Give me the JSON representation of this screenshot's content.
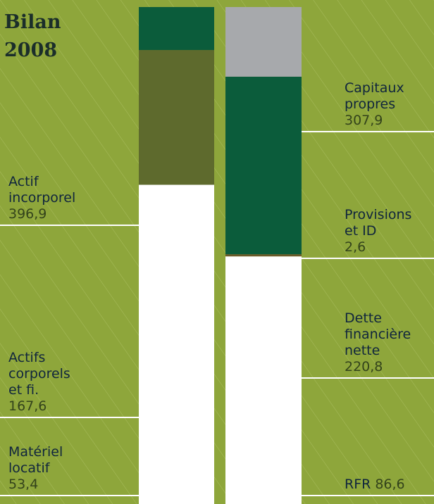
{
  "chart_data": {
    "type": "stacked-columns",
    "title": [
      "Bilan",
      "2008"
    ],
    "stacks": [
      {
        "segments": [
          {
            "name": [
              "Actif",
              "incorporel"
            ],
            "value": 396.9,
            "value_label": "396,9",
            "color": "#ffffff"
          },
          {
            "name": [
              "Actifs",
              "corporels",
              "et fi."
            ],
            "value": 167.6,
            "value_label": "167,6",
            "color": "#5e6a2d"
          },
          {
            "name": [
              "Matériel",
              "locatif"
            ],
            "value": 53.4,
            "value_label": "53,4",
            "color": "#0b5c3b"
          }
        ]
      },
      {
        "segments": [
          {
            "name": [
              "Capitaux",
              "propres"
            ],
            "value": 307.9,
            "value_label": "307,9",
            "color": "#ffffff"
          },
          {
            "name": [
              "Provisions",
              "et ID"
            ],
            "value": 2.6,
            "value_label": "2,6",
            "color": "#6b5a2a"
          },
          {
            "name": [
              "Dette",
              "financière",
              "nette"
            ],
            "value": 220.8,
            "value_label": "220,8",
            "color": "#0b5c3b"
          },
          {
            "name": [
              "RFR"
            ],
            "value": 86.6,
            "value_label": "86,6",
            "color": "#a7a9ac",
            "inline": true
          }
        ]
      }
    ]
  }
}
